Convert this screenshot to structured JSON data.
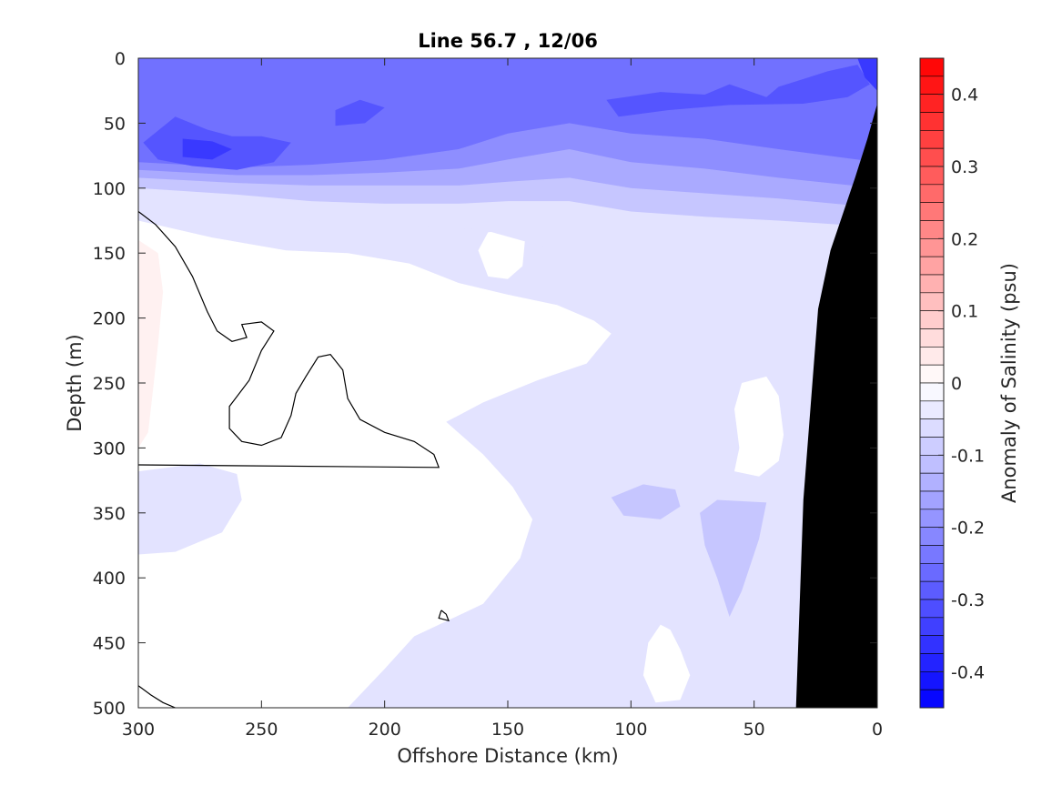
{
  "chart_data": {
    "type": "heatmap",
    "subtype": "filled-contour section",
    "title": "Line 56.7 , 12/06",
    "xlabel": "Offshore Distance (km)",
    "ylabel": "Depth (m)",
    "xlim": [
      300,
      0
    ],
    "ylim": [
      500,
      0
    ],
    "x_direction": "reversed (offshore on left, coast on right)",
    "y_direction": "reversed (depth increases downward)",
    "x_ticks": [
      300,
      250,
      200,
      150,
      100,
      50,
      0
    ],
    "x_tick_labels": [
      "300",
      "250",
      "200",
      "150",
      "100",
      "50",
      "0"
    ],
    "y_ticks": [
      0,
      50,
      100,
      150,
      200,
      250,
      300,
      350,
      400,
      450,
      500
    ],
    "y_tick_labels": [
      "0",
      "50",
      "100",
      "150",
      "200",
      "250",
      "300",
      "350",
      "400",
      "450",
      "500"
    ],
    "colorbar": {
      "label": "Anomaly of Salinity (psu)",
      "range": [
        -0.45,
        0.45
      ],
      "step": 0.025,
      "ticks": [
        0.4,
        0.3,
        0.2,
        0.1,
        0,
        -0.1,
        -0.2,
        -0.3,
        -0.4
      ],
      "tick_labels": [
        "0.4",
        "0.3",
        "0.2",
        "0.1",
        "0",
        "-0.1",
        "-0.2",
        "-0.3",
        "-0.4"
      ],
      "colormap": "blue-white-red (diverging)",
      "negative_color": "#0000ff",
      "zero_color": "#ffffff",
      "positive_color": "#ff0000"
    },
    "bathymetry_color": "#000000",
    "contour_line": {
      "level": 0.0,
      "color": "#000000"
    },
    "bathymetry": [
      {
        "x": 0,
        "depth": 35
      },
      {
        "x": 4,
        "depth": 62
      },
      {
        "x": 9,
        "depth": 92
      },
      {
        "x": 19,
        "depth": 148
      },
      {
        "x": 24,
        "depth": 193
      },
      {
        "x": 30,
        "depth": 340
      },
      {
        "x": 33,
        "depth": 500
      }
    ],
    "bands": [
      {
        "anomaly": -0.05,
        "poly": [
          [
            300,
            0
          ],
          [
            0,
            0
          ],
          [
            0,
            500
          ],
          [
            300,
            500
          ]
        ]
      },
      {
        "anomaly": 0.0,
        "poly": [
          [
            300,
            125
          ],
          [
            270,
            138
          ],
          [
            240,
            148
          ],
          [
            215,
            150
          ],
          [
            190,
            158
          ],
          [
            170,
            173
          ],
          [
            150,
            182
          ],
          [
            130,
            190
          ],
          [
            115,
            202
          ],
          [
            108,
            212
          ],
          [
            118,
            235
          ],
          [
            138,
            248
          ],
          [
            160,
            265
          ],
          [
            175,
            280
          ],
          [
            160,
            305
          ],
          [
            148,
            330
          ],
          [
            140,
            355
          ],
          [
            145,
            385
          ],
          [
            160,
            420
          ],
          [
            188,
            445
          ],
          [
            200,
            470
          ],
          [
            215,
            500
          ],
          [
            300,
            500
          ]
        ]
      },
      {
        "anomaly": 0.0,
        "poly": [
          [
            45,
            245
          ],
          [
            40,
            260
          ],
          [
            38,
            290
          ],
          [
            40,
            310
          ],
          [
            48,
            322
          ],
          [
            58,
            318
          ],
          [
            56,
            300
          ],
          [
            58,
            270
          ],
          [
            55,
            250
          ]
        ]
      },
      {
        "anomaly": 0.0,
        "poly": [
          [
            80,
            455
          ],
          [
            84,
            440
          ],
          [
            88,
            436
          ],
          [
            93,
            450
          ],
          [
            95,
            475
          ],
          [
            90,
            496
          ],
          [
            80,
            494
          ],
          [
            76,
            475
          ]
        ]
      },
      {
        "anomaly": 0.0,
        "poly": [
          [
            143,
            140
          ],
          [
            150,
            132
          ],
          [
            158,
            134
          ],
          [
            162,
            148
          ],
          [
            158,
            168
          ],
          [
            150,
            170
          ],
          [
            144,
            160
          ]
        ]
      },
      {
        "anomaly": -0.05,
        "poly": [
          [
            300,
            318
          ],
          [
            275,
            312
          ],
          [
            260,
            320
          ],
          [
            258,
            340
          ],
          [
            266,
            365
          ],
          [
            285,
            380
          ],
          [
            300,
            382
          ]
        ]
      },
      {
        "anomaly": -0.1,
        "poly": [
          [
            82,
            332
          ],
          [
            95,
            328
          ],
          [
            108,
            338
          ],
          [
            103,
            352
          ],
          [
            88,
            355
          ],
          [
            80,
            345
          ]
        ]
      },
      {
        "anomaly": -0.1,
        "poly": [
          [
            65,
            340
          ],
          [
            45,
            342
          ],
          [
            48,
            370
          ],
          [
            55,
            410
          ],
          [
            60,
            430
          ],
          [
            65,
            400
          ],
          [
            70,
            375
          ],
          [
            72,
            350
          ]
        ]
      },
      {
        "anomaly": -0.05,
        "poly": [
          [
            300,
            0
          ],
          [
            0,
            0
          ],
          [
            0,
            160
          ],
          [
            40,
            160
          ],
          [
            70,
            160
          ],
          [
            100,
            155
          ],
          [
            130,
            148
          ],
          [
            160,
            132
          ],
          [
            190,
            128
          ],
          [
            220,
            128
          ],
          [
            250,
            120
          ],
          [
            300,
            112
          ]
        ]
      },
      {
        "anomaly": -0.1,
        "poly": [
          [
            300,
            0
          ],
          [
            0,
            0
          ],
          [
            0,
            130
          ],
          [
            40,
            125
          ],
          [
            70,
            122
          ],
          [
            100,
            118
          ],
          [
            125,
            110
          ],
          [
            150,
            110
          ],
          [
            170,
            112
          ],
          [
            200,
            112
          ],
          [
            230,
            110
          ],
          [
            260,
            105
          ],
          [
            300,
            100
          ]
        ]
      },
      {
        "anomaly": -0.15,
        "poly": [
          [
            300,
            0
          ],
          [
            0,
            0
          ],
          [
            0,
            115
          ],
          [
            40,
            108
          ],
          [
            70,
            104
          ],
          [
            100,
            100
          ],
          [
            125,
            92
          ],
          [
            150,
            95
          ],
          [
            170,
            98
          ],
          [
            200,
            98
          ],
          [
            230,
            98
          ],
          [
            260,
            96
          ],
          [
            300,
            92
          ]
        ]
      },
      {
        "anomaly": -0.2,
        "poly": [
          [
            300,
            0
          ],
          [
            0,
            0
          ],
          [
            0,
            100
          ],
          [
            40,
            92
          ],
          [
            70,
            85
          ],
          [
            100,
            80
          ],
          [
            125,
            70
          ],
          [
            150,
            78
          ],
          [
            170,
            85
          ],
          [
            200,
            88
          ],
          [
            230,
            90
          ],
          [
            260,
            90
          ],
          [
            300,
            86
          ]
        ]
      },
      {
        "anomaly": -0.25,
        "poly": [
          [
            300,
            0
          ],
          [
            0,
            0
          ],
          [
            0,
            80
          ],
          [
            40,
            70
          ],
          [
            70,
            62
          ],
          [
            100,
            58
          ],
          [
            125,
            50
          ],
          [
            150,
            58
          ],
          [
            170,
            70
          ],
          [
            200,
            78
          ],
          [
            230,
            82
          ],
          [
            260,
            84
          ],
          [
            300,
            80
          ]
        ]
      },
      {
        "anomaly": -0.3,
        "poly": [
          [
            285,
            45
          ],
          [
            272,
            55
          ],
          [
            262,
            60
          ],
          [
            250,
            60
          ],
          [
            238,
            65
          ],
          [
            245,
            80
          ],
          [
            260,
            86
          ],
          [
            278,
            83
          ],
          [
            292,
            78
          ],
          [
            298,
            65
          ]
        ]
      },
      {
        "anomaly": -0.3,
        "poly": [
          [
            220,
            40
          ],
          [
            210,
            32
          ],
          [
            200,
            38
          ],
          [
            208,
            50
          ],
          [
            220,
            52
          ]
        ]
      },
      {
        "anomaly": -0.3,
        "poly": [
          [
            110,
            32
          ],
          [
            88,
            26
          ],
          [
            70,
            28
          ],
          [
            60,
            20
          ],
          [
            45,
            30
          ],
          [
            40,
            22
          ],
          [
            20,
            10
          ],
          [
            8,
            5
          ],
          [
            3,
            20
          ],
          [
            12,
            30
          ],
          [
            30,
            35
          ],
          [
            60,
            36
          ],
          [
            85,
            40
          ],
          [
            105,
            45
          ]
        ]
      },
      {
        "anomaly": -0.35,
        "poly": [
          [
            282,
            62
          ],
          [
            270,
            64
          ],
          [
            262,
            70
          ],
          [
            270,
            78
          ],
          [
            282,
            76
          ]
        ]
      },
      {
        "anomaly": -0.35,
        "poly": [
          [
            8,
            0
          ],
          [
            0,
            0
          ],
          [
            0,
            25
          ],
          [
            5,
            15
          ]
        ]
      },
      {
        "anomaly": 0.025,
        "poly": [
          [
            300,
            140
          ],
          [
            292,
            150
          ],
          [
            290,
            180
          ],
          [
            292,
            220
          ],
          [
            294,
            255
          ],
          [
            296,
            288
          ],
          [
            300,
            300
          ]
        ]
      }
    ],
    "zero_contours": [
      [
        [
          300,
          118
        ],
        [
          293,
          128
        ],
        [
          285,
          145
        ],
        [
          278,
          168
        ],
        [
          272,
          195
        ],
        [
          268,
          210
        ],
        [
          262,
          218
        ],
        [
          256,
          215
        ],
        [
          258,
          205
        ],
        [
          250,
          203
        ],
        [
          245,
          210
        ],
        [
          250,
          225
        ],
        [
          255,
          248
        ],
        [
          263,
          268
        ],
        [
          263,
          285
        ],
        [
          258,
          295
        ],
        [
          250,
          298
        ],
        [
          242,
          292
        ],
        [
          238,
          275
        ],
        [
          236,
          258
        ],
        [
          232,
          245
        ],
        [
          227,
          230
        ],
        [
          222,
          228
        ],
        [
          217,
          240
        ],
        [
          215,
          262
        ],
        [
          210,
          278
        ],
        [
          200,
          288
        ],
        [
          188,
          295
        ],
        [
          180,
          305
        ],
        [
          178,
          315
        ],
        [
          300,
          313
        ]
      ],
      [
        [
          300,
          483
        ],
        [
          295,
          490
        ],
        [
          290,
          496
        ],
        [
          285,
          500
        ]
      ],
      [
        [
          177,
          425
        ],
        [
          175,
          428
        ],
        [
          174,
          433
        ],
        [
          178,
          431
        ],
        [
          177,
          425
        ]
      ]
    ]
  }
}
